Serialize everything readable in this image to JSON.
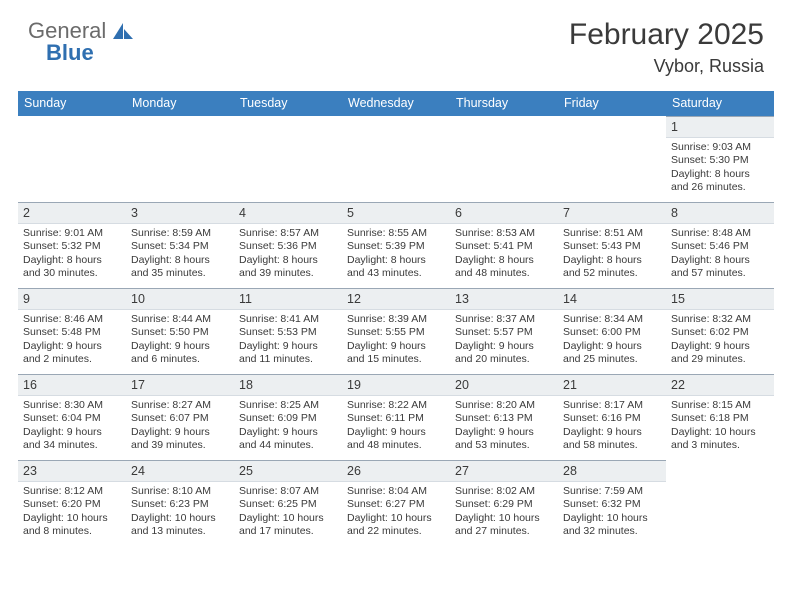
{
  "brand": {
    "part1": "General",
    "part2": "Blue"
  },
  "title": "February 2025",
  "location": "Vybor, Russia",
  "colors": {
    "header_bar": "#3b7fbf",
    "day_bar_bg": "#eceff1",
    "day_bar_border_top": "#9aa7b5",
    "text": "#3a3a3a",
    "logo_gray": "#6b6b6b",
    "logo_blue": "#2f6fb0",
    "background": "#ffffff"
  },
  "typography": {
    "month_title_size_pt": 22,
    "location_size_pt": 13,
    "dow_size_pt": 9,
    "daynum_size_pt": 9,
    "body_size_pt": 8
  },
  "layout": {
    "columns": 7,
    "rows": 5,
    "first_weekday_index": 6
  },
  "dow": [
    "Sunday",
    "Monday",
    "Tuesday",
    "Wednesday",
    "Thursday",
    "Friday",
    "Saturday"
  ],
  "days": [
    {
      "n": 1,
      "sunrise": "9:03 AM",
      "sunset": "5:30 PM",
      "daylight": "8 hours and 26 minutes."
    },
    {
      "n": 2,
      "sunrise": "9:01 AM",
      "sunset": "5:32 PM",
      "daylight": "8 hours and 30 minutes."
    },
    {
      "n": 3,
      "sunrise": "8:59 AM",
      "sunset": "5:34 PM",
      "daylight": "8 hours and 35 minutes."
    },
    {
      "n": 4,
      "sunrise": "8:57 AM",
      "sunset": "5:36 PM",
      "daylight": "8 hours and 39 minutes."
    },
    {
      "n": 5,
      "sunrise": "8:55 AM",
      "sunset": "5:39 PM",
      "daylight": "8 hours and 43 minutes."
    },
    {
      "n": 6,
      "sunrise": "8:53 AM",
      "sunset": "5:41 PM",
      "daylight": "8 hours and 48 minutes."
    },
    {
      "n": 7,
      "sunrise": "8:51 AM",
      "sunset": "5:43 PM",
      "daylight": "8 hours and 52 minutes."
    },
    {
      "n": 8,
      "sunrise": "8:48 AM",
      "sunset": "5:46 PM",
      "daylight": "8 hours and 57 minutes."
    },
    {
      "n": 9,
      "sunrise": "8:46 AM",
      "sunset": "5:48 PM",
      "daylight": "9 hours and 2 minutes."
    },
    {
      "n": 10,
      "sunrise": "8:44 AM",
      "sunset": "5:50 PM",
      "daylight": "9 hours and 6 minutes."
    },
    {
      "n": 11,
      "sunrise": "8:41 AM",
      "sunset": "5:53 PM",
      "daylight": "9 hours and 11 minutes."
    },
    {
      "n": 12,
      "sunrise": "8:39 AM",
      "sunset": "5:55 PM",
      "daylight": "9 hours and 15 minutes."
    },
    {
      "n": 13,
      "sunrise": "8:37 AM",
      "sunset": "5:57 PM",
      "daylight": "9 hours and 20 minutes."
    },
    {
      "n": 14,
      "sunrise": "8:34 AM",
      "sunset": "6:00 PM",
      "daylight": "9 hours and 25 minutes."
    },
    {
      "n": 15,
      "sunrise": "8:32 AM",
      "sunset": "6:02 PM",
      "daylight": "9 hours and 29 minutes."
    },
    {
      "n": 16,
      "sunrise": "8:30 AM",
      "sunset": "6:04 PM",
      "daylight": "9 hours and 34 minutes."
    },
    {
      "n": 17,
      "sunrise": "8:27 AM",
      "sunset": "6:07 PM",
      "daylight": "9 hours and 39 minutes."
    },
    {
      "n": 18,
      "sunrise": "8:25 AM",
      "sunset": "6:09 PM",
      "daylight": "9 hours and 44 minutes."
    },
    {
      "n": 19,
      "sunrise": "8:22 AM",
      "sunset": "6:11 PM",
      "daylight": "9 hours and 48 minutes."
    },
    {
      "n": 20,
      "sunrise": "8:20 AM",
      "sunset": "6:13 PM",
      "daylight": "9 hours and 53 minutes."
    },
    {
      "n": 21,
      "sunrise": "8:17 AM",
      "sunset": "6:16 PM",
      "daylight": "9 hours and 58 minutes."
    },
    {
      "n": 22,
      "sunrise": "8:15 AM",
      "sunset": "6:18 PM",
      "daylight": "10 hours and 3 minutes."
    },
    {
      "n": 23,
      "sunrise": "8:12 AM",
      "sunset": "6:20 PM",
      "daylight": "10 hours and 8 minutes."
    },
    {
      "n": 24,
      "sunrise": "8:10 AM",
      "sunset": "6:23 PM",
      "daylight": "10 hours and 13 minutes."
    },
    {
      "n": 25,
      "sunrise": "8:07 AM",
      "sunset": "6:25 PM",
      "daylight": "10 hours and 17 minutes."
    },
    {
      "n": 26,
      "sunrise": "8:04 AM",
      "sunset": "6:27 PM",
      "daylight": "10 hours and 22 minutes."
    },
    {
      "n": 27,
      "sunrise": "8:02 AM",
      "sunset": "6:29 PM",
      "daylight": "10 hours and 27 minutes."
    },
    {
      "n": 28,
      "sunrise": "7:59 AM",
      "sunset": "6:32 PM",
      "daylight": "10 hours and 32 minutes."
    }
  ],
  "labels": {
    "sunrise": "Sunrise:",
    "sunset": "Sunset:",
    "daylight": "Daylight:"
  }
}
